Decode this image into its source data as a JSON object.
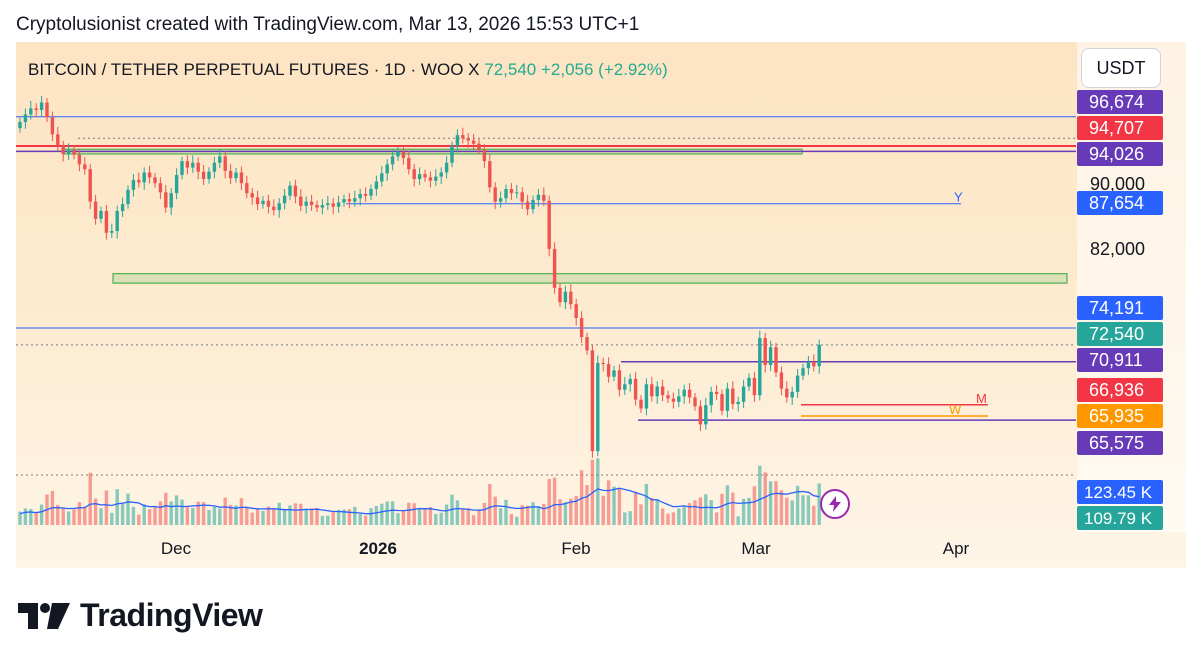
{
  "header": {
    "text": "Cryptolusionist created with TradingView.com, Mar 13, 2026 15:53 UTC+1"
  },
  "currency_button": {
    "label": "USDT"
  },
  "symbol_line": {
    "name": "BITCOIN / TETHER PERPETUAL FUTURES · 1D · WOO X",
    "last": "72,540",
    "change": "+2,056 (+2.92%)"
  },
  "footer": {
    "brand": "TradingView"
  },
  "colors": {
    "up": "#26a69a",
    "down": "#ef5350",
    "background": "#fde7c6",
    "line_blue": "#2962ff",
    "line_red": "#f23645",
    "line_purple": "#673ab7",
    "line_orange": "#ff9800",
    "line_green": "#4caf50"
  },
  "chart_data": {
    "type": "candlestick",
    "timeframe": "1D",
    "price_axis": {
      "scale": "log",
      "range": [
        63000,
        101000
      ],
      "tick_labels": [
        "90,000",
        "82,000"
      ]
    },
    "date_axis": {
      "labels": [
        "Dec",
        "2026",
        "Feb",
        "Mar",
        "Apr"
      ]
    },
    "price_labels": [
      {
        "value": 96674,
        "text": "96,674",
        "color": "#673ab7"
      },
      {
        "value": 94707,
        "text": "94,707",
        "color": "#f23645"
      },
      {
        "value": 94026,
        "text": "94,026",
        "color": "#673ab7"
      },
      {
        "value": 87654,
        "text": "87,654",
        "color": "#2962ff"
      },
      {
        "value": 74191,
        "text": "74,191",
        "color": "#2962ff"
      },
      {
        "value": 72540,
        "text": "72,540",
        "color": "#26a69a"
      },
      {
        "value": 70911,
        "text": "70,911",
        "color": "#673ab7"
      },
      {
        "value": 66936,
        "text": "66,936",
        "color": "#f23645"
      },
      {
        "value": 65935,
        "text": "65,935",
        "color": "#ff9800"
      },
      {
        "value": 65575,
        "text": "65,575",
        "color": "#673ab7"
      }
    ],
    "volume_labels": [
      {
        "text": "123.45 K",
        "color": "#2962ff"
      },
      {
        "text": "109.79 K",
        "color": "#26a69a"
      }
    ],
    "line_labels": [
      {
        "text": "Y",
        "price": 87654,
        "color": "#2962ff"
      },
      {
        "text": "M",
        "price": 66936,
        "color": "#f23645"
      },
      {
        "text": "W",
        "price": 65935,
        "color": "#ff9800"
      }
    ],
    "zones": [
      {
        "from": 93700,
        "to": 94300,
        "color": "#4caf50"
      },
      {
        "from": 78800,
        "to": 79800,
        "color": "#4caf50"
      }
    ],
    "closes": [
      97800,
      98800,
      99600,
      99400,
      100400,
      98400,
      96200,
      94700,
      93700,
      94200,
      93600,
      92400,
      91800,
      87900,
      85900,
      86800,
      84300,
      84500,
      86800,
      87600,
      89300,
      90500,
      90200,
      91400,
      90800,
      90100,
      89000,
      87200,
      88900,
      91100,
      92800,
      92000,
      92600,
      91500,
      90600,
      91500,
      92600,
      93400,
      91600,
      90700,
      91400,
      90100,
      88900,
      88400,
      87600,
      88000,
      87300,
      86900,
      87700,
      88600,
      89800,
      88500,
      87400,
      87900,
      87500,
      87200,
      87500,
      87700,
      87300,
      87800,
      88200,
      87900,
      88300,
      88800,
      88600,
      89400,
      90300,
      91300,
      92400,
      93400,
      94000,
      93200,
      91800,
      90600,
      91200,
      90800,
      90400,
      90900,
      91400,
      92600,
      94700,
      96100,
      95700,
      95400,
      95000,
      94200,
      92800,
      89600,
      87900,
      88300,
      89400,
      88900,
      89000,
      87900,
      87000,
      88100,
      88700,
      88000,
      82500,
      78300,
      76800,
      77900,
      76600,
      75200,
      73300,
      72000,
      62900,
      70800,
      70700,
      69500,
      70100,
      68300,
      68800,
      69300,
      67400,
      66600,
      68800,
      67700,
      68600,
      67800,
      67500,
      67200,
      67700,
      68300,
      67600,
      66800,
      65200,
      66900,
      68100,
      67900,
      66400,
      68400,
      67000,
      67200,
      68600,
      69400,
      67800,
      73200,
      70600,
      72300,
      69900,
      68400,
      67600,
      68100,
      69600,
      70300,
      70900,
      70484,
      72540
    ],
    "volume_ma_text": ""
  }
}
